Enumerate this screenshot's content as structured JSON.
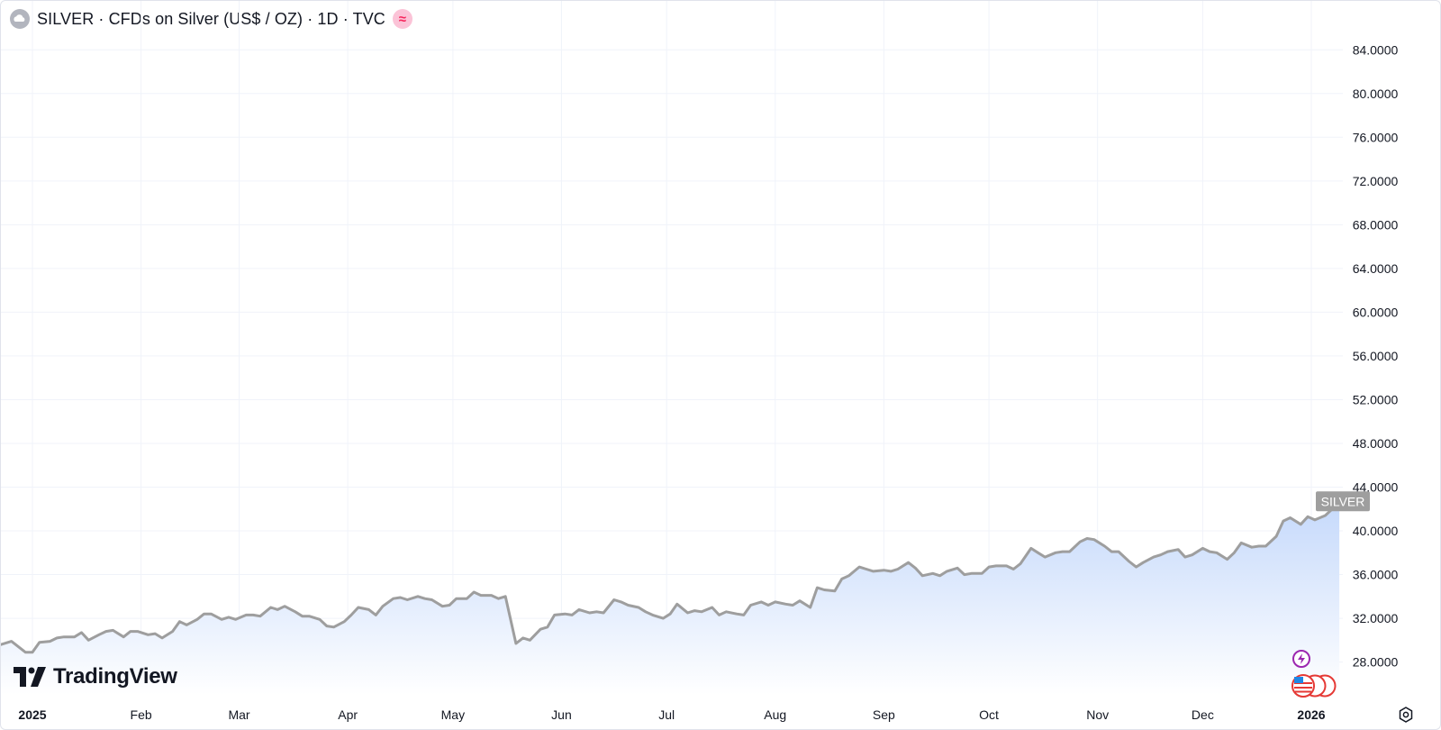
{
  "header": {
    "title": "SILVER · CFDs on Silver (US$ / OZ) · 1D · TVC",
    "wave_icon": "≈"
  },
  "branding": {
    "logo_text": "TradingView"
  },
  "price_label": "SILVER",
  "colors": {
    "line": "#9e9e9e",
    "fill_top": "#c5d9fb",
    "fill_bottom": "#ffffff",
    "grid": "#f0f3fa",
    "label_bg": "#9e9e9e"
  },
  "chart_data": {
    "type": "area",
    "title": "SILVER · CFDs on Silver (US$ / OZ) · 1D · TVC",
    "ylim": [
      25,
      86
    ],
    "xlim": [
      "2024-12-23",
      "2026-01-10"
    ],
    "y_ticks": [
      "28.0000",
      "32.0000",
      "36.0000",
      "40.0000",
      "44.0000",
      "48.0000",
      "52.0000",
      "56.0000",
      "60.0000",
      "64.0000",
      "68.0000",
      "72.0000",
      "76.0000",
      "80.0000",
      "84.0000"
    ],
    "x_ticks": [
      {
        "label": "2025",
        "date": "2025-01-01",
        "bold": true
      },
      {
        "label": "Feb",
        "date": "2025-02-01",
        "bold": false
      },
      {
        "label": "Mar",
        "date": "2025-03-01",
        "bold": false
      },
      {
        "label": "Apr",
        "date": "2025-04-01",
        "bold": false
      },
      {
        "label": "May",
        "date": "2025-05-01",
        "bold": false
      },
      {
        "label": "Jun",
        "date": "2025-06-01",
        "bold": false
      },
      {
        "label": "Jul",
        "date": "2025-07-01",
        "bold": false
      },
      {
        "label": "Aug",
        "date": "2025-08-01",
        "bold": false
      },
      {
        "label": "Sep",
        "date": "2025-09-01",
        "bold": false
      },
      {
        "label": "Oct",
        "date": "2025-10-01",
        "bold": false
      },
      {
        "label": "Nov",
        "date": "2025-11-01",
        "bold": false
      },
      {
        "label": "Dec",
        "date": "2025-12-01",
        "bold": false
      },
      {
        "label": "2026",
        "date": "2026-01-01",
        "bold": true
      }
    ],
    "series": [
      {
        "points": [
          [
            "2024-12-23",
            29.6
          ],
          [
            "2024-12-26",
            29.9
          ],
          [
            "2024-12-30",
            28.9
          ],
          [
            "2025-01-01",
            28.9
          ],
          [
            "2025-01-03",
            29.8
          ],
          [
            "2025-01-06",
            29.9
          ],
          [
            "2025-01-08",
            30.2
          ],
          [
            "2025-01-10",
            30.3
          ],
          [
            "2025-01-13",
            30.3
          ],
          [
            "2025-01-15",
            30.7
          ],
          [
            "2025-01-17",
            30.0
          ],
          [
            "2025-01-20",
            30.5
          ],
          [
            "2025-01-22",
            30.8
          ],
          [
            "2025-01-24",
            30.9
          ],
          [
            "2025-01-27",
            30.3
          ],
          [
            "2025-01-29",
            30.8
          ],
          [
            "2025-01-31",
            30.8
          ],
          [
            "2025-02-03",
            30.5
          ],
          [
            "2025-02-05",
            30.6
          ],
          [
            "2025-02-07",
            30.2
          ],
          [
            "2025-02-10",
            30.8
          ],
          [
            "2025-02-12",
            31.7
          ],
          [
            "2025-02-14",
            31.4
          ],
          [
            "2025-02-17",
            31.9
          ],
          [
            "2025-02-19",
            32.4
          ],
          [
            "2025-02-21",
            32.4
          ],
          [
            "2025-02-24",
            31.9
          ],
          [
            "2025-02-26",
            32.1
          ],
          [
            "2025-02-28",
            31.9
          ],
          [
            "2025-03-03",
            32.3
          ],
          [
            "2025-03-05",
            32.3
          ],
          [
            "2025-03-07",
            32.2
          ],
          [
            "2025-03-10",
            33.0
          ],
          [
            "2025-03-12",
            32.8
          ],
          [
            "2025-03-14",
            33.1
          ],
          [
            "2025-03-17",
            32.6
          ],
          [
            "2025-03-19",
            32.2
          ],
          [
            "2025-03-21",
            32.2
          ],
          [
            "2025-03-24",
            31.9
          ],
          [
            "2025-03-26",
            31.3
          ],
          [
            "2025-03-28",
            31.2
          ],
          [
            "2025-03-31",
            31.7
          ],
          [
            "2025-04-02",
            32.3
          ],
          [
            "2025-04-04",
            33.0
          ],
          [
            "2025-04-07",
            32.8
          ],
          [
            "2025-04-09",
            32.3
          ],
          [
            "2025-04-11",
            33.1
          ],
          [
            "2025-04-14",
            33.8
          ],
          [
            "2025-04-16",
            33.9
          ],
          [
            "2025-04-18",
            33.7
          ],
          [
            "2025-04-21",
            34.0
          ],
          [
            "2025-04-23",
            33.8
          ],
          [
            "2025-04-25",
            33.7
          ],
          [
            "2025-04-28",
            33.1
          ],
          [
            "2025-04-30",
            33.2
          ],
          [
            "2025-05-02",
            33.8
          ],
          [
            "2025-05-05",
            33.8
          ],
          [
            "2025-05-07",
            34.4
          ],
          [
            "2025-05-09",
            34.1
          ],
          [
            "2025-05-12",
            34.1
          ],
          [
            "2025-05-14",
            33.8
          ],
          [
            "2025-05-16",
            34.0
          ],
          [
            "2025-05-19",
            29.7
          ],
          [
            "2025-05-21",
            30.2
          ],
          [
            "2025-05-23",
            30.0
          ],
          [
            "2025-05-26",
            31.0
          ],
          [
            "2025-05-28",
            31.2
          ],
          [
            "2025-05-30",
            32.3
          ],
          [
            "2025-06-02",
            32.4
          ],
          [
            "2025-06-04",
            32.3
          ],
          [
            "2025-06-06",
            32.8
          ],
          [
            "2025-06-09",
            32.5
          ],
          [
            "2025-06-11",
            32.6
          ],
          [
            "2025-06-13",
            32.5
          ],
          [
            "2025-06-16",
            33.7
          ],
          [
            "2025-06-18",
            33.5
          ],
          [
            "2025-06-20",
            33.2
          ],
          [
            "2025-06-23",
            33.0
          ],
          [
            "2025-06-25",
            32.6
          ],
          [
            "2025-06-27",
            32.3
          ],
          [
            "2025-06-30",
            32.0
          ],
          [
            "2025-07-02",
            32.4
          ],
          [
            "2025-07-04",
            33.3
          ],
          [
            "2025-07-07",
            32.5
          ],
          [
            "2025-07-09",
            32.7
          ],
          [
            "2025-07-11",
            32.6
          ],
          [
            "2025-07-14",
            33.0
          ],
          [
            "2025-07-16",
            32.3
          ],
          [
            "2025-07-18",
            32.6
          ],
          [
            "2025-07-21",
            32.4
          ],
          [
            "2025-07-23",
            32.3
          ],
          [
            "2025-07-25",
            33.2
          ],
          [
            "2025-07-28",
            33.5
          ],
          [
            "2025-07-30",
            33.2
          ],
          [
            "2025-08-01",
            33.5
          ],
          [
            "2025-08-04",
            33.3
          ],
          [
            "2025-08-06",
            33.2
          ],
          [
            "2025-08-08",
            33.6
          ],
          [
            "2025-08-11",
            33.0
          ],
          [
            "2025-08-13",
            34.8
          ],
          [
            "2025-08-15",
            34.6
          ],
          [
            "2025-08-18",
            34.5
          ],
          [
            "2025-08-20",
            35.6
          ],
          [
            "2025-08-22",
            35.9
          ],
          [
            "2025-08-25",
            36.7
          ],
          [
            "2025-08-27",
            36.5
          ],
          [
            "2025-08-29",
            36.3
          ],
          [
            "2025-09-01",
            36.4
          ],
          [
            "2025-09-03",
            36.3
          ],
          [
            "2025-09-05",
            36.5
          ],
          [
            "2025-09-08",
            37.1
          ],
          [
            "2025-09-10",
            36.6
          ],
          [
            "2025-09-12",
            35.9
          ],
          [
            "2025-09-15",
            36.1
          ],
          [
            "2025-09-17",
            35.9
          ],
          [
            "2025-09-19",
            36.3
          ],
          [
            "2025-09-22",
            36.6
          ],
          [
            "2025-09-24",
            36.0
          ],
          [
            "2025-09-26",
            36.1
          ],
          [
            "2025-09-29",
            36.1
          ],
          [
            "2025-10-01",
            36.7
          ],
          [
            "2025-10-03",
            36.8
          ],
          [
            "2025-10-06",
            36.8
          ],
          [
            "2025-10-08",
            36.5
          ],
          [
            "2025-10-10",
            37.0
          ],
          [
            "2025-10-13",
            38.4
          ],
          [
            "2025-10-15",
            38.0
          ],
          [
            "2025-10-17",
            37.6
          ],
          [
            "2025-10-20",
            38.0
          ],
          [
            "2025-10-22",
            38.1
          ],
          [
            "2025-10-24",
            38.1
          ],
          [
            "2025-10-27",
            39.0
          ],
          [
            "2025-10-29",
            39.3
          ],
          [
            "2025-10-31",
            39.2
          ],
          [
            "2025-11-03",
            38.6
          ],
          [
            "2025-11-05",
            38.1
          ],
          [
            "2025-11-07",
            38.1
          ],
          [
            "2025-11-10",
            37.2
          ],
          [
            "2025-11-12",
            36.7
          ],
          [
            "2025-11-14",
            37.1
          ],
          [
            "2025-11-17",
            37.6
          ],
          [
            "2025-11-19",
            37.8
          ],
          [
            "2025-11-21",
            38.1
          ],
          [
            "2025-11-24",
            38.3
          ],
          [
            "2025-11-26",
            37.6
          ],
          [
            "2025-11-28",
            37.8
          ],
          [
            "2025-12-01",
            38.4
          ],
          [
            "2025-12-03",
            38.1
          ],
          [
            "2025-12-05",
            38.0
          ],
          [
            "2025-12-08",
            37.4
          ],
          [
            "2025-12-10",
            38.0
          ],
          [
            "2025-12-12",
            38.9
          ],
          [
            "2025-12-15",
            38.5
          ],
          [
            "2025-12-17",
            38.6
          ],
          [
            "2025-12-19",
            38.6
          ],
          [
            "2025-12-22",
            39.5
          ],
          [
            "2025-12-24",
            40.9
          ],
          [
            "2025-12-26",
            41.2
          ],
          [
            "2025-12-29",
            40.6
          ],
          [
            "2025-12-31",
            41.3
          ],
          [
            "2026-01-02",
            41.0
          ],
          [
            "2026-01-05",
            41.4
          ],
          [
            "2026-01-07",
            42.0
          ],
          [
            "2026-01-09",
            42.7
          ]
        ]
      }
    ]
  }
}
